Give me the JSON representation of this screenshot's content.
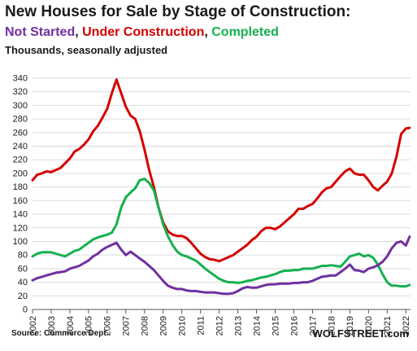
{
  "chart_data": {
    "type": "line",
    "title": "New Houses for Sale by Stage of Construction:",
    "subtitle_parts": [
      "Not Started",
      ", ",
      "Under Construction",
      ", ",
      "Completed"
    ],
    "ylabel": "Thousands, seasonally adjusted",
    "source": "Source:  Commerce Dept.",
    "brand": "WOLFSTREET.com",
    "xlim": [
      2002,
      2022.25
    ],
    "ylim": [
      0,
      340
    ],
    "yticks": [
      0,
      20,
      40,
      60,
      80,
      100,
      120,
      140,
      160,
      180,
      200,
      220,
      240,
      260,
      280,
      300,
      320,
      340
    ],
    "xticks": [
      "2002",
      "2003",
      "2004",
      "2005",
      "2006",
      "2007",
      "2008",
      "2009",
      "2010",
      "2011",
      "2012",
      "2013",
      "2014",
      "2015",
      "2016",
      "2017",
      "2018",
      "2019",
      "2020",
      "2021",
      "2022"
    ],
    "grid": true,
    "series": [
      {
        "name": "Under Construction",
        "color": "#d40000",
        "points": [
          [
            2002.0,
            190
          ],
          [
            2002.25,
            198
          ],
          [
            2002.5,
            200
          ],
          [
            2002.75,
            203
          ],
          [
            2003.0,
            202
          ],
          [
            2003.25,
            205
          ],
          [
            2003.5,
            208
          ],
          [
            2003.75,
            215
          ],
          [
            2004.0,
            222
          ],
          [
            2004.25,
            232
          ],
          [
            2004.5,
            236
          ],
          [
            2004.75,
            242
          ],
          [
            2005.0,
            250
          ],
          [
            2005.25,
            262
          ],
          [
            2005.5,
            270
          ],
          [
            2005.75,
            282
          ],
          [
            2006.0,
            295
          ],
          [
            2006.25,
            318
          ],
          [
            2006.5,
            338
          ],
          [
            2006.75,
            318
          ],
          [
            2007.0,
            298
          ],
          [
            2007.25,
            285
          ],
          [
            2007.5,
            280
          ],
          [
            2007.75,
            262
          ],
          [
            2008.0,
            235
          ],
          [
            2008.25,
            205
          ],
          [
            2008.5,
            180
          ],
          [
            2008.75,
            150
          ],
          [
            2009.0,
            128
          ],
          [
            2009.25,
            115
          ],
          [
            2009.5,
            110
          ],
          [
            2009.75,
            108
          ],
          [
            2010.0,
            108
          ],
          [
            2010.25,
            105
          ],
          [
            2010.5,
            98
          ],
          [
            2010.75,
            90
          ],
          [
            2011.0,
            82
          ],
          [
            2011.25,
            77
          ],
          [
            2011.5,
            74
          ],
          [
            2011.75,
            73
          ],
          [
            2012.0,
            71
          ],
          [
            2012.25,
            74
          ],
          [
            2012.5,
            77
          ],
          [
            2012.75,
            80
          ],
          [
            2013.0,
            85
          ],
          [
            2013.25,
            90
          ],
          [
            2013.5,
            95
          ],
          [
            2013.75,
            102
          ],
          [
            2014.0,
            107
          ],
          [
            2014.25,
            115
          ],
          [
            2014.5,
            120
          ],
          [
            2014.75,
            120
          ],
          [
            2015.0,
            118
          ],
          [
            2015.25,
            122
          ],
          [
            2015.5,
            128
          ],
          [
            2015.75,
            134
          ],
          [
            2016.0,
            140
          ],
          [
            2016.25,
            148
          ],
          [
            2016.5,
            148
          ],
          [
            2016.75,
            152
          ],
          [
            2017.0,
            155
          ],
          [
            2017.25,
            163
          ],
          [
            2017.5,
            172
          ],
          [
            2017.75,
            178
          ],
          [
            2018.0,
            180
          ],
          [
            2018.25,
            188
          ],
          [
            2018.5,
            196
          ],
          [
            2018.75,
            203
          ],
          [
            2019.0,
            207
          ],
          [
            2019.25,
            200
          ],
          [
            2019.5,
            198
          ],
          [
            2019.75,
            198
          ],
          [
            2020.0,
            190
          ],
          [
            2020.25,
            180
          ],
          [
            2020.5,
            175
          ],
          [
            2020.75,
            182
          ],
          [
            2021.0,
            188
          ],
          [
            2021.25,
            200
          ],
          [
            2021.5,
            225
          ],
          [
            2021.75,
            258
          ],
          [
            2022.0,
            266
          ],
          [
            2022.2,
            267
          ]
        ]
      },
      {
        "name": "Completed",
        "color": "#16b04e",
        "points": [
          [
            2002.0,
            78
          ],
          [
            2002.25,
            82
          ],
          [
            2002.5,
            84
          ],
          [
            2002.75,
            84
          ],
          [
            2003.0,
            84
          ],
          [
            2003.25,
            82
          ],
          [
            2003.5,
            80
          ],
          [
            2003.75,
            78
          ],
          [
            2004.0,
            82
          ],
          [
            2004.25,
            86
          ],
          [
            2004.5,
            88
          ],
          [
            2004.75,
            93
          ],
          [
            2005.0,
            98
          ],
          [
            2005.25,
            103
          ],
          [
            2005.5,
            106
          ],
          [
            2005.75,
            108
          ],
          [
            2006.0,
            110
          ],
          [
            2006.25,
            113
          ],
          [
            2006.5,
            125
          ],
          [
            2006.75,
            150
          ],
          [
            2007.0,
            165
          ],
          [
            2007.25,
            172
          ],
          [
            2007.5,
            178
          ],
          [
            2007.75,
            190
          ],
          [
            2008.0,
            192
          ],
          [
            2008.25,
            186
          ],
          [
            2008.5,
            175
          ],
          [
            2008.75,
            150
          ],
          [
            2009.0,
            125
          ],
          [
            2009.25,
            108
          ],
          [
            2009.5,
            95
          ],
          [
            2009.75,
            85
          ],
          [
            2010.0,
            80
          ],
          [
            2010.25,
            78
          ],
          [
            2010.5,
            75
          ],
          [
            2010.75,
            72
          ],
          [
            2011.0,
            66
          ],
          [
            2011.25,
            60
          ],
          [
            2011.5,
            55
          ],
          [
            2011.75,
            50
          ],
          [
            2012.0,
            45
          ],
          [
            2012.25,
            42
          ],
          [
            2012.5,
            40
          ],
          [
            2012.75,
            40
          ],
          [
            2013.0,
            39
          ],
          [
            2013.25,
            40
          ],
          [
            2013.5,
            42
          ],
          [
            2013.75,
            43
          ],
          [
            2014.0,
            45
          ],
          [
            2014.25,
            47
          ],
          [
            2014.5,
            48
          ],
          [
            2014.75,
            50
          ],
          [
            2015.0,
            52
          ],
          [
            2015.25,
            55
          ],
          [
            2015.5,
            57
          ],
          [
            2015.75,
            57
          ],
          [
            2016.0,
            58
          ],
          [
            2016.25,
            58
          ],
          [
            2016.5,
            60
          ],
          [
            2016.75,
            60
          ],
          [
            2017.0,
            60
          ],
          [
            2017.25,
            62
          ],
          [
            2017.5,
            64
          ],
          [
            2017.75,
            64
          ],
          [
            2018.0,
            65
          ],
          [
            2018.25,
            64
          ],
          [
            2018.5,
            63
          ],
          [
            2018.75,
            70
          ],
          [
            2019.0,
            78
          ],
          [
            2019.25,
            80
          ],
          [
            2019.5,
            82
          ],
          [
            2019.75,
            78
          ],
          [
            2020.0,
            80
          ],
          [
            2020.25,
            76
          ],
          [
            2020.5,
            66
          ],
          [
            2020.75,
            52
          ],
          [
            2021.0,
            40
          ],
          [
            2021.25,
            35
          ],
          [
            2021.5,
            35
          ],
          [
            2021.75,
            34
          ],
          [
            2022.0,
            34
          ],
          [
            2022.2,
            36
          ]
        ]
      },
      {
        "name": "Not Started",
        "color": "#7030a0",
        "points": [
          [
            2002.0,
            43
          ],
          [
            2002.25,
            46
          ],
          [
            2002.5,
            48
          ],
          [
            2002.75,
            50
          ],
          [
            2003.0,
            52
          ],
          [
            2003.25,
            54
          ],
          [
            2003.5,
            55
          ],
          [
            2003.75,
            56
          ],
          [
            2004.0,
            60
          ],
          [
            2004.25,
            62
          ],
          [
            2004.5,
            64
          ],
          [
            2004.75,
            68
          ],
          [
            2005.0,
            72
          ],
          [
            2005.25,
            78
          ],
          [
            2005.5,
            82
          ],
          [
            2005.75,
            88
          ],
          [
            2006.0,
            92
          ],
          [
            2006.25,
            95
          ],
          [
            2006.5,
            98
          ],
          [
            2006.75,
            88
          ],
          [
            2007.0,
            80
          ],
          [
            2007.25,
            85
          ],
          [
            2007.5,
            80
          ],
          [
            2007.75,
            75
          ],
          [
            2008.0,
            70
          ],
          [
            2008.25,
            64
          ],
          [
            2008.5,
            58
          ],
          [
            2008.75,
            50
          ],
          [
            2009.0,
            42
          ],
          [
            2009.25,
            35
          ],
          [
            2009.5,
            32
          ],
          [
            2009.75,
            30
          ],
          [
            2010.0,
            30
          ],
          [
            2010.25,
            28
          ],
          [
            2010.5,
            27
          ],
          [
            2010.75,
            27
          ],
          [
            2011.0,
            26
          ],
          [
            2011.25,
            25
          ],
          [
            2011.5,
            25
          ],
          [
            2011.75,
            25
          ],
          [
            2012.0,
            24
          ],
          [
            2012.25,
            23
          ],
          [
            2012.5,
            23
          ],
          [
            2012.75,
            24
          ],
          [
            2013.0,
            27
          ],
          [
            2013.25,
            31
          ],
          [
            2013.5,
            33
          ],
          [
            2013.75,
            32
          ],
          [
            2014.0,
            32
          ],
          [
            2014.25,
            34
          ],
          [
            2014.5,
            36
          ],
          [
            2014.75,
            37
          ],
          [
            2015.0,
            37
          ],
          [
            2015.25,
            38
          ],
          [
            2015.5,
            38
          ],
          [
            2015.75,
            38
          ],
          [
            2016.0,
            39
          ],
          [
            2016.25,
            39
          ],
          [
            2016.5,
            40
          ],
          [
            2016.75,
            40
          ],
          [
            2017.0,
            42
          ],
          [
            2017.25,
            45
          ],
          [
            2017.5,
            48
          ],
          [
            2017.75,
            49
          ],
          [
            2018.0,
            50
          ],
          [
            2018.25,
            50
          ],
          [
            2018.5,
            55
          ],
          [
            2018.75,
            60
          ],
          [
            2019.0,
            66
          ],
          [
            2019.25,
            58
          ],
          [
            2019.5,
            57
          ],
          [
            2019.75,
            55
          ],
          [
            2020.0,
            60
          ],
          [
            2020.25,
            62
          ],
          [
            2020.5,
            65
          ],
          [
            2020.75,
            70
          ],
          [
            2021.0,
            78
          ],
          [
            2021.25,
            90
          ],
          [
            2021.5,
            98
          ],
          [
            2021.75,
            100
          ],
          [
            2022.0,
            94
          ],
          [
            2022.2,
            107
          ]
        ]
      }
    ]
  }
}
